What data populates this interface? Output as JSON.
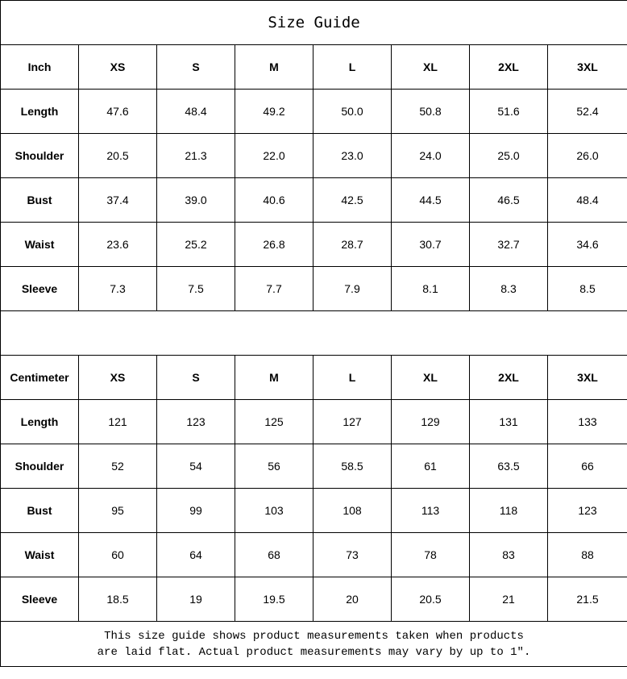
{
  "title": "Size Guide",
  "tables": [
    {
      "unit": "Inch",
      "sizes": [
        "XS",
        "S",
        "M",
        "L",
        "XL",
        "2XL",
        "3XL"
      ],
      "rows": [
        {
          "label": "Length",
          "values": [
            "47.6",
            "48.4",
            "49.2",
            "50.0",
            "50.8",
            "51.6",
            "52.4"
          ]
        },
        {
          "label": "Shoulder",
          "values": [
            "20.5",
            "21.3",
            "22.0",
            "23.0",
            "24.0",
            "25.0",
            "26.0"
          ]
        },
        {
          "label": "Bust",
          "values": [
            "37.4",
            "39.0",
            "40.6",
            "42.5",
            "44.5",
            "46.5",
            "48.4"
          ]
        },
        {
          "label": "Waist",
          "values": [
            "23.6",
            "25.2",
            "26.8",
            "28.7",
            "30.7",
            "32.7",
            "34.6"
          ]
        },
        {
          "label": "Sleeve",
          "values": [
            "7.3",
            "7.5",
            "7.7",
            "7.9",
            "8.1",
            "8.3",
            "8.5"
          ]
        }
      ]
    },
    {
      "unit": "Centimeter",
      "sizes": [
        "XS",
        "S",
        "M",
        "L",
        "XL",
        "2XL",
        "3XL"
      ],
      "rows": [
        {
          "label": "Length",
          "values": [
            "121",
            "123",
            "125",
            "127",
            "129",
            "131",
            "133"
          ]
        },
        {
          "label": "Shoulder",
          "values": [
            "52",
            "54",
            "56",
            "58.5",
            "61",
            "63.5",
            "66"
          ]
        },
        {
          "label": "Bust",
          "values": [
            "95",
            "99",
            "103",
            "108",
            "113",
            "118",
            "123"
          ]
        },
        {
          "label": "Waist",
          "values": [
            "60",
            "64",
            "68",
            "73",
            "78",
            "83",
            "88"
          ]
        },
        {
          "label": "Sleeve",
          "values": [
            "18.5",
            "19",
            "19.5",
            "20",
            "20.5",
            "21",
            "21.5"
          ]
        }
      ]
    }
  ],
  "note_line1": "This size guide shows product measurements taken when products",
  "note_line2": "are laid flat. Actual product measurements may vary by up to 1″."
}
